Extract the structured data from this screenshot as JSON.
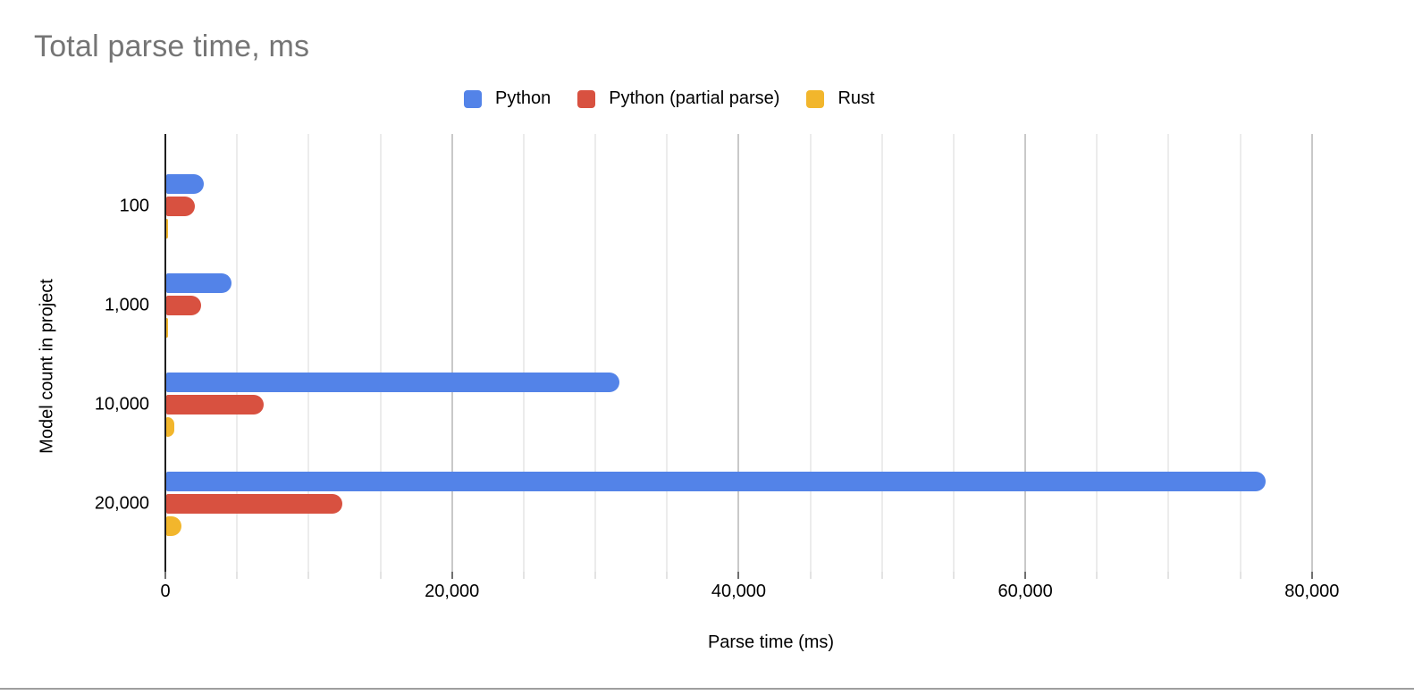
{
  "page": {
    "background": "#ffffff",
    "bottom_border_color": "#9e9e9e"
  },
  "chart_data": {
    "type": "bar",
    "orientation": "horizontal",
    "title": "Total parse time, ms",
    "title_color": "#757575",
    "xlabel": "Parse time (ms)",
    "ylabel": "Model count in project",
    "legend_position": "top",
    "grid": true,
    "categories": [
      "100",
      "1,000",
      "10,000",
      "20,000"
    ],
    "series": [
      {
        "name": "Python",
        "color": "#5383e8",
        "values": [
          2600,
          4550,
          31600,
          76700
        ]
      },
      {
        "name": "Python (partial parse)",
        "color": "#d85140",
        "values": [
          2000,
          2430,
          6800,
          12300
        ]
      },
      {
        "name": "Rust",
        "color": "#f2b62c",
        "values": [
          120,
          150,
          560,
          1050
        ]
      }
    ],
    "x_axis": {
      "min": 0,
      "max_visible": 84500,
      "minor_tick_step": 5000,
      "last_gridline": 80000,
      "major_tick_step": 20000,
      "major_ticks": [
        {
          "value": 0,
          "label": "0"
        },
        {
          "value": 20000,
          "label": "20,000"
        },
        {
          "value": 40000,
          "label": "40,000"
        },
        {
          "value": 60000,
          "label": "60,000"
        },
        {
          "value": 80000,
          "label": "80,000"
        }
      ],
      "minor_gridline_color": "#ececec",
      "major_gridline_color": "#c9c9c9"
    }
  }
}
